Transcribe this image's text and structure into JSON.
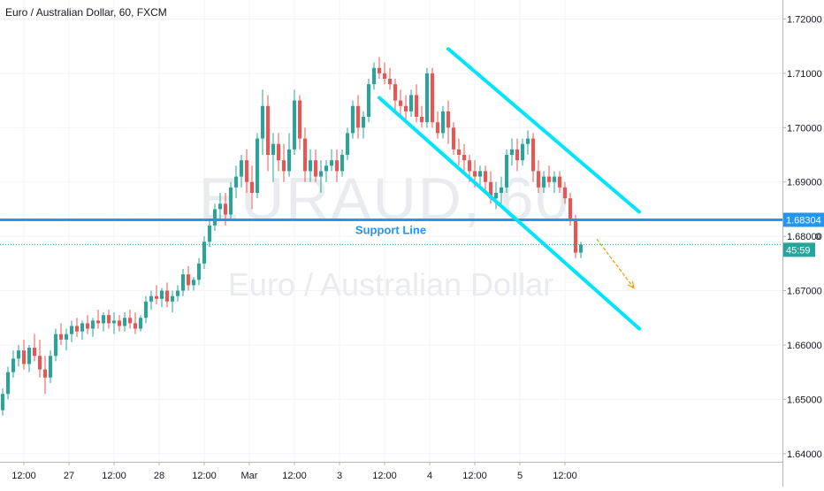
{
  "header": {
    "title": "Euro / Australian Dollar, 60, FXCM"
  },
  "watermark": {
    "symbol": "EURAUD, 60",
    "description": "Euro / Australian Dollar"
  },
  "colors": {
    "up": "#26a69a",
    "down": "#ef5350",
    "channel": "#00e5ff",
    "support": "#2196f3",
    "projection": "#ff9800",
    "grid": "#f0f3fa",
    "axis_text": "#131722"
  },
  "annotations": {
    "support_label": "Support Line",
    "support_price_tag": "1.68304",
    "countdown_tag": "45:59",
    "partial_tag_suffix": "0"
  },
  "chart_data": {
    "type": "candlestick",
    "title": "Euro / Australian Dollar, 60, FXCM",
    "x_tick_labels": [
      "12:00",
      "27",
      "12:00",
      "28",
      "12:00",
      "Mar",
      "12:00",
      "3",
      "12:00",
      "4",
      "12:00",
      "5",
      "12:00"
    ],
    "y_tick_labels": [
      "1.72000",
      "1.71000",
      "1.70000",
      "1.69000",
      "1.68000",
      "1.67000",
      "1.66000",
      "1.65000",
      "1.64000"
    ],
    "ylim": [
      1.6385,
      1.7235
    ],
    "y_ticks": [
      1.72,
      1.71,
      1.7,
      1.69,
      1.68,
      1.67,
      1.66,
      1.65,
      1.64
    ],
    "grid": true,
    "support_level": 1.68304,
    "candles": [
      [
        1.648,
        1.652,
        1.647,
        1.651
      ],
      [
        1.651,
        1.656,
        1.65,
        1.655
      ],
      [
        1.655,
        1.659,
        1.654,
        1.6575
      ],
      [
        1.6575,
        1.66,
        1.656,
        1.659
      ],
      [
        1.659,
        1.661,
        1.6555,
        1.6565
      ],
      [
        1.6565,
        1.66,
        1.655,
        1.6595
      ],
      [
        1.6595,
        1.662,
        1.657,
        1.658
      ],
      [
        1.658,
        1.661,
        1.654,
        1.6555
      ],
      [
        1.6555,
        1.658,
        1.651,
        1.654
      ],
      [
        1.654,
        1.659,
        1.653,
        1.658
      ],
      [
        1.658,
        1.663,
        1.657,
        1.662
      ],
      [
        1.662,
        1.664,
        1.66,
        1.661
      ],
      [
        1.661,
        1.663,
        1.659,
        1.662
      ],
      [
        1.662,
        1.6645,
        1.6605,
        1.6635
      ],
      [
        1.6635,
        1.665,
        1.6615,
        1.6625
      ],
      [
        1.6625,
        1.6645,
        1.661,
        1.664
      ],
      [
        1.664,
        1.6655,
        1.662,
        1.663
      ],
      [
        1.663,
        1.665,
        1.6615,
        1.6645
      ],
      [
        1.6645,
        1.6665,
        1.663,
        1.664
      ],
      [
        1.664,
        1.666,
        1.6625,
        1.6655
      ],
      [
        1.6655,
        1.6665,
        1.663,
        1.664
      ],
      [
        1.664,
        1.666,
        1.662,
        1.6645
      ],
      [
        1.6645,
        1.6655,
        1.6625,
        1.6635
      ],
      [
        1.6635,
        1.666,
        1.6625,
        1.665
      ],
      [
        1.665,
        1.6665,
        1.663,
        1.664
      ],
      [
        1.664,
        1.666,
        1.662,
        1.663
      ],
      [
        1.663,
        1.6655,
        1.6625,
        1.665
      ],
      [
        1.665,
        1.669,
        1.664,
        1.668
      ],
      [
        1.668,
        1.67,
        1.6665,
        1.669
      ],
      [
        1.669,
        1.671,
        1.6675,
        1.6685
      ],
      [
        1.6685,
        1.6705,
        1.667,
        1.67
      ],
      [
        1.67,
        1.6715,
        1.667,
        1.668
      ],
      [
        1.668,
        1.67,
        1.666,
        1.669
      ],
      [
        1.669,
        1.671,
        1.668,
        1.67
      ],
      [
        1.67,
        1.674,
        1.669,
        1.673
      ],
      [
        1.673,
        1.6745,
        1.67,
        1.671
      ],
      [
        1.671,
        1.6725,
        1.67,
        1.672
      ],
      [
        1.672,
        1.676,
        1.671,
        1.675
      ],
      [
        1.675,
        1.68,
        1.674,
        1.679
      ],
      [
        1.679,
        1.683,
        1.678,
        1.682
      ],
      [
        1.682,
        1.686,
        1.681,
        1.685
      ],
      [
        1.685,
        1.688,
        1.683,
        1.686
      ],
      [
        1.686,
        1.688,
        1.682,
        1.684
      ],
      [
        1.684,
        1.69,
        1.683,
        1.689
      ],
      [
        1.689,
        1.693,
        1.687,
        1.691
      ],
      [
        1.691,
        1.695,
        1.689,
        1.694
      ],
      [
        1.694,
        1.696,
        1.688,
        1.69
      ],
      [
        1.69,
        1.693,
        1.685,
        1.688
      ],
      [
        1.688,
        1.699,
        1.687,
        1.698
      ],
      [
        1.698,
        1.707,
        1.695,
        1.704
      ],
      [
        1.704,
        1.706,
        1.692,
        1.695
      ],
      [
        1.695,
        1.699,
        1.69,
        1.697
      ],
      [
        1.697,
        1.699,
        1.692,
        1.694
      ],
      [
        1.694,
        1.697,
        1.69,
        1.692
      ],
      [
        1.692,
        1.699,
        1.691,
        1.696
      ],
      [
        1.696,
        1.707,
        1.695,
        1.705
      ],
      [
        1.705,
        1.706,
        1.696,
        1.698
      ],
      [
        1.698,
        1.7,
        1.69,
        1.692
      ],
      [
        1.692,
        1.696,
        1.69,
        1.694
      ],
      [
        1.694,
        1.696,
        1.69,
        1.691
      ],
      [
        1.691,
        1.694,
        1.688,
        1.692
      ],
      [
        1.692,
        1.694,
        1.69,
        1.693
      ],
      [
        1.693,
        1.696,
        1.692,
        1.694
      ],
      [
        1.694,
        1.696,
        1.69,
        1.692
      ],
      [
        1.692,
        1.696,
        1.691,
        1.695
      ],
      [
        1.695,
        1.7,
        1.694,
        1.699
      ],
      [
        1.699,
        1.705,
        1.698,
        1.704
      ],
      [
        1.704,
        1.706,
        1.698,
        1.7
      ],
      [
        1.7,
        1.703,
        1.698,
        1.702
      ],
      [
        1.702,
        1.709,
        1.701,
        1.708
      ],
      [
        1.708,
        1.712,
        1.707,
        1.711
      ],
      [
        1.711,
        1.713,
        1.709,
        1.71
      ],
      [
        1.71,
        1.712,
        1.708,
        1.709
      ],
      [
        1.709,
        1.711,
        1.707,
        1.708
      ],
      [
        1.708,
        1.709,
        1.703,
        1.705
      ],
      [
        1.705,
        1.707,
        1.702,
        1.704
      ],
      [
        1.704,
        1.706,
        1.701,
        1.703
      ],
      [
        1.703,
        1.707,
        1.702,
        1.706
      ],
      [
        1.706,
        1.708,
        1.701,
        1.702
      ],
      [
        1.702,
        1.704,
        1.7,
        1.701
      ],
      [
        1.701,
        1.711,
        1.7,
        1.71
      ],
      [
        1.71,
        1.711,
        1.7,
        1.701
      ],
      [
        1.701,
        1.703,
        1.698,
        1.699
      ],
      [
        1.699,
        1.704,
        1.698,
        1.703
      ],
      [
        1.703,
        1.705,
        1.697,
        1.7
      ],
      [
        1.7,
        1.701,
        1.695,
        1.696
      ],
      [
        1.696,
        1.698,
        1.693,
        1.695
      ],
      [
        1.695,
        1.697,
        1.692,
        1.694
      ],
      [
        1.694,
        1.695,
        1.69,
        1.692
      ],
      [
        1.692,
        1.694,
        1.689,
        1.691
      ],
      [
        1.691,
        1.693,
        1.689,
        1.692
      ],
      [
        1.692,
        1.693,
        1.688,
        1.69
      ],
      [
        1.69,
        1.692,
        1.686,
        1.687
      ],
      [
        1.687,
        1.69,
        1.685,
        1.688
      ],
      [
        1.688,
        1.691,
        1.686,
        1.689
      ],
      [
        1.689,
        1.696,
        1.688,
        1.695
      ],
      [
        1.695,
        1.698,
        1.693,
        1.696
      ],
      [
        1.696,
        1.698,
        1.692,
        1.694
      ],
      [
        1.694,
        1.698,
        1.693,
        1.697
      ],
      [
        1.697,
        1.6995,
        1.695,
        1.698
      ],
      [
        1.698,
        1.699,
        1.69,
        1.692
      ],
      [
        1.692,
        1.694,
        1.688,
        1.689
      ],
      [
        1.689,
        1.692,
        1.688,
        1.691
      ],
      [
        1.691,
        1.693,
        1.689,
        1.69
      ],
      [
        1.69,
        1.692,
        1.688,
        1.691
      ],
      [
        1.691,
        1.692,
        1.688,
        1.689
      ],
      [
        1.689,
        1.69,
        1.686,
        1.687
      ],
      [
        1.687,
        1.688,
        1.682,
        1.683
      ],
      [
        1.683,
        1.684,
        1.676,
        1.677
      ],
      [
        1.677,
        1.679,
        1.676,
        1.6785
      ]
    ],
    "candle_fields": [
      "open",
      "high",
      "low",
      "close"
    ],
    "trendlines": [
      {
        "name": "channel-upper",
        "from": {
          "bar": 84,
          "price": 1.7145
        },
        "to": {
          "bar": 120,
          "price": 1.6845
        }
      },
      {
        "name": "channel-lower",
        "from": {
          "bar": 71,
          "price": 1.7055
        },
        "to": {
          "bar": 120,
          "price": 1.663
        }
      }
    ],
    "projection_arrow": {
      "from": {
        "bar": 112,
        "price": 1.6795
      },
      "to": {
        "bar": 119,
        "price": 1.6705
      }
    },
    "x_ticks_bar_index": [
      4,
      12.5,
      21,
      29.5,
      38,
      46.5,
      55,
      63.5,
      72,
      80.5,
      89,
      97.5,
      106
    ]
  }
}
